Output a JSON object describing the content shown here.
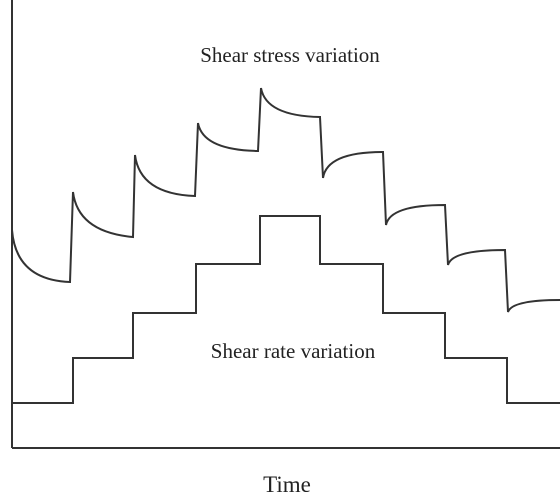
{
  "stress_label": "Shear stress variation",
  "rate_label": "Shear rate variation",
  "x_axis_label": "Time"
}
